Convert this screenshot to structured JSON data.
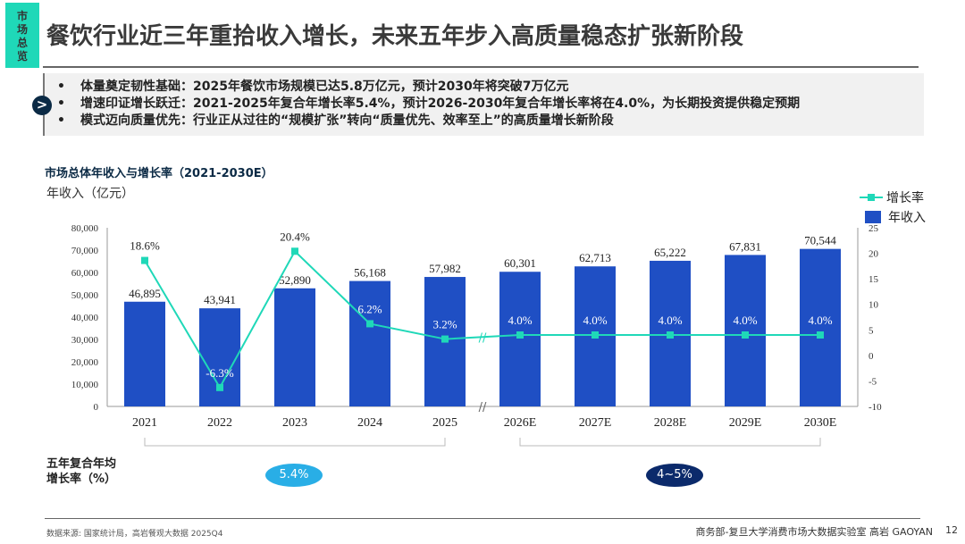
{
  "header": {
    "section_tag": [
      "市",
      "场",
      "总",
      "览"
    ],
    "title": "餐饮行业近三年重拾收入增长，未来五年步入高质量稳态扩张新阶段"
  },
  "summary": {
    "bullets": [
      "体量奠定韧性基础：2025年餐饮市场规模已达5.8万亿元，预计2030年将突破7万亿元",
      "增速印证增长跃迁：2021-2025年复合年增长率5.4%，预计2026-2030年复合年增长率将在4.0%，为长期投资提供稳定预期",
      "模式迈向质量优先：行业正从过往的“规模扩张”转向“质量优先、效率至上”的高质量增长新阶段"
    ],
    "bullet_mark": "•",
    "arrow_icon": "chevron-right-icon"
  },
  "chart_data": {
    "type": "bar+line",
    "title": "市场总体年收入与增长率（2021-2030E）",
    "ylabel": "年收入（亿元）",
    "categories": [
      "2021",
      "2022",
      "2023",
      "2024",
      "2025",
      "2026E",
      "2027E",
      "2028E",
      "2029E",
      "2030E"
    ],
    "series": [
      {
        "name": "年收入",
        "type": "bar",
        "axis": "left",
        "color": "#1f4fc4",
        "values": [
          46895,
          43941,
          52890,
          56168,
          57982,
          60301,
          62713,
          65222,
          67831,
          70544
        ],
        "labels": [
          "46,895",
          "43,941",
          "52,890",
          "56,168",
          "57,982",
          "60,301",
          "62,713",
          "65,222",
          "67,831",
          "70,544"
        ]
      },
      {
        "name": "增长率",
        "type": "line",
        "axis": "right",
        "color": "#1fd8b8",
        "values": [
          18.6,
          -6.3,
          20.4,
          6.2,
          3.2,
          4.0,
          4.0,
          4.0,
          4.0,
          4.0
        ],
        "labels": [
          "18.6%",
          "-6.3%",
          "20.4%",
          "6.2%",
          "3.2%",
          "4.0%",
          "4.0%",
          "4.0%",
          "4.0%",
          "4.0%"
        ]
      }
    ],
    "left_axis": {
      "range": [
        0,
        80000
      ],
      "ticks": [
        "0",
        "10,000",
        "20,000",
        "30,000",
        "40,000",
        "50,000",
        "60,000",
        "70,000",
        "80,000"
      ]
    },
    "right_axis": {
      "range": [
        -10,
        25
      ],
      "ticks": [
        "-10",
        "-5",
        "0",
        "5",
        "10",
        "15",
        "20",
        "25"
      ]
    },
    "axis_break_marker": "//",
    "legend": {
      "placement": "top-right"
    },
    "grid": false
  },
  "cagr": {
    "label_line1": "五年复合年均",
    "label_line2": "增长率（%）",
    "period1": "5.4%",
    "period2": "4~5%",
    "color1": "#29aee6",
    "color2": "#0b2a6b"
  },
  "footer": {
    "source": "数据来源: 国家统计局，高岩餐观大数据 2025Q4",
    "org": "商务部-复旦大学消费市场大数据实验室   高岩 GAOYAN",
    "page": "12"
  }
}
